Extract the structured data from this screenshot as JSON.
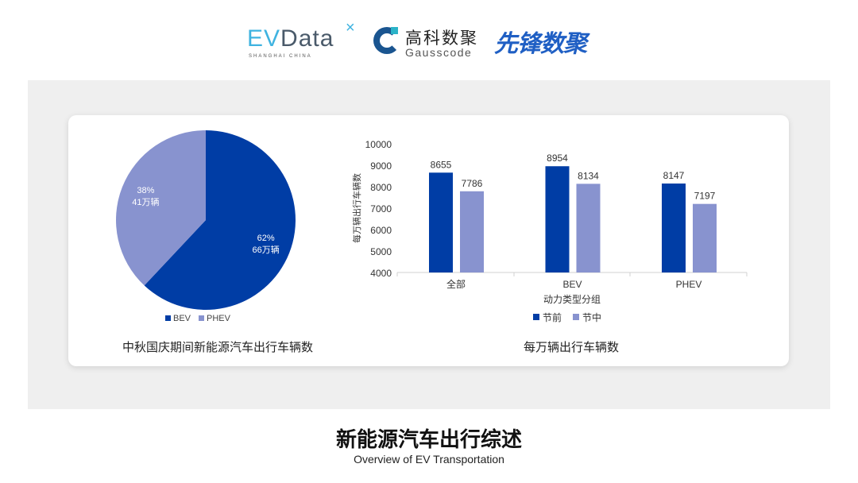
{
  "logos": {
    "evdata": "EVData",
    "evdata_sub": "SHANGHAI CHINA",
    "gauss_cn": "高科数聚",
    "gauss_en": "Gausscode",
    "xianfeng": "先锋数聚"
  },
  "chart_data": [
    {
      "type": "pie",
      "title": "中秋国庆期间新能源汽车出行车辆数",
      "slices": [
        {
          "name": "BEV",
          "percent": 62,
          "label": "66万辆",
          "color": "#003da5"
        },
        {
          "name": "PHEV",
          "percent": 38,
          "label": "41万辆",
          "color": "#8893cf"
        }
      ],
      "legend": [
        "BEV",
        "PHEV"
      ],
      "legend_position": "bottom"
    },
    {
      "type": "bar",
      "title": "每万辆出行车辆数",
      "xlabel": "动力类型分组",
      "ylabel": "每万辆出行车辆数",
      "categories": [
        "全部",
        "BEV",
        "PHEV"
      ],
      "series": [
        {
          "name": "节前",
          "values": [
            8655,
            8954,
            8147
          ],
          "color": "#003da5"
        },
        {
          "name": "节中",
          "values": [
            7786,
            8134,
            7197
          ],
          "color": "#8893cf"
        }
      ],
      "ylim": [
        4000,
        10000
      ],
      "yticks": [
        4000,
        5000,
        6000,
        7000,
        8000,
        9000,
        10000
      ],
      "grid": false,
      "legend_position": "bottom"
    }
  ],
  "footer": {
    "title": "新能源汽车出行综述",
    "subtitle": "Overview of EV Transportation"
  }
}
